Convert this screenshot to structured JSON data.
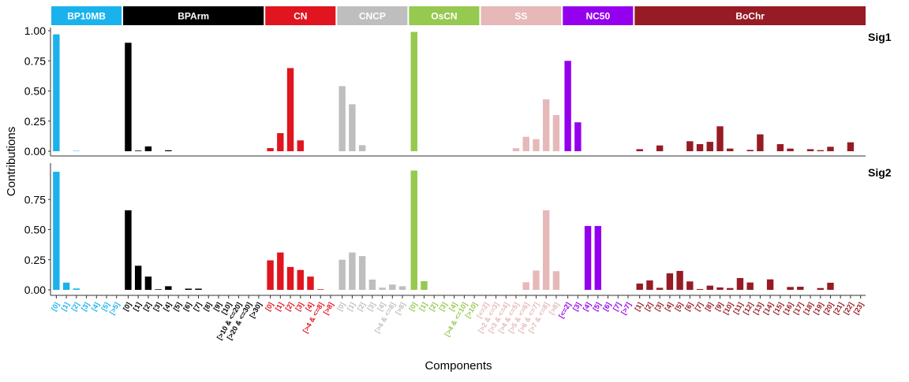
{
  "chart_data": {
    "type": "bar",
    "xlabel": "Components",
    "ylabel": "Contributions",
    "ylim": [
      0,
      1
    ],
    "yticks": {
      "Sig1": [
        "0.00",
        "0.25",
        "0.50",
        "0.75",
        "1.00"
      ],
      "Sig2": [
        "0.00",
        "0.25",
        "0.50",
        "0.75"
      ]
    },
    "facets": [
      {
        "name": "BP10MB",
        "color": "#1AB2EC",
        "labels": [
          "[0]",
          "[1]",
          "[2]",
          "[3]",
          "[4]",
          "[5]",
          "[>5]"
        ]
      },
      {
        "name": "BPArm",
        "color": "#000000",
        "labels": [
          "[0]",
          "[1]",
          "[2]",
          "[3]",
          "[4]",
          "[5]",
          "[6]",
          "[7]",
          "[8]",
          "[9]",
          "[10]",
          "[>10 & <=20]",
          "[>20 & <=30]",
          "[>30]"
        ]
      },
      {
        "name": "CN",
        "color": "#E0151F",
        "labels": [
          "[0]",
          "[1]",
          "[2]",
          "[3]",
          "[4]",
          "[>4 & <=8]",
          "[>8]"
        ]
      },
      {
        "name": "CNCP",
        "color": "#BEBEBE",
        "labels": [
          "[0]",
          "[1]",
          "[2]",
          "[3]",
          "[4]",
          "[>4 & <=8]",
          "[>8]"
        ]
      },
      {
        "name": "OsCN",
        "color": "#95C94F",
        "labels": [
          "[0]",
          "[1]",
          "[2]",
          "[3]",
          "[4]",
          "[>4 & <=10]",
          "[>10]"
        ]
      },
      {
        "name": "SS",
        "color": "#E6B8B8",
        "labels": [
          "[<=2]",
          "[>2 & <=3]",
          "[>3 & <=4]",
          "[>4 & <=5]",
          "[>5 & <=6]",
          "[>6 & <=7]",
          "[>7 & <=8]",
          "[>8]"
        ]
      },
      {
        "name": "NC50",
        "color": "#9400EE",
        "labels": [
          "[<=2]",
          "[3]",
          "[4]",
          "[5]",
          "[6]",
          "[7]",
          "[>7]"
        ]
      },
      {
        "name": "BoChr",
        "color": "#971B24",
        "labels": [
          "[1]",
          "[2]",
          "[3]",
          "[4]",
          "[5]",
          "[6]",
          "[7]",
          "[8]",
          "[9]",
          "[10]",
          "[11]",
          "[12]",
          "[13]",
          "[14]",
          "[15]",
          "[16]",
          "[17]",
          "[18]",
          "[19]",
          "[20]",
          "[21]",
          "[22]",
          "[23]"
        ]
      }
    ],
    "series": [
      {
        "name": "Sig1",
        "values": {
          "BP10MB": [
            0.97,
            0,
            0.003,
            0,
            0,
            0,
            0
          ],
          "BPArm": [
            0.9,
            0.005,
            0.04,
            0,
            0.008,
            0,
            0,
            0,
            0,
            0,
            0,
            0,
            0,
            0
          ],
          "CN": [
            0.026,
            0.15,
            0.69,
            0.09,
            0,
            0,
            0
          ],
          "CNCP": [
            0.54,
            0.39,
            0.05,
            0,
            0,
            0,
            0
          ],
          "OsCN": [
            0.99,
            0,
            0,
            0,
            0,
            0,
            0
          ],
          "SS": [
            0,
            0,
            0,
            0.025,
            0.12,
            0.1,
            0.43,
            0.3
          ],
          "NC50": [
            0.75,
            0.24,
            0,
            0,
            0,
            0,
            0
          ],
          "BoChr": [
            0.017,
            0,
            0.048,
            0,
            0,
            0.083,
            0.059,
            0.078,
            0.207,
            0.022,
            0,
            0.011,
            0.14,
            0,
            0.059,
            0.022,
            0,
            0.017,
            0.009,
            0.037,
            0,
            0.074,
            0
          ]
        }
      },
      {
        "name": "Sig2",
        "values": {
          "BP10MB": [
            0.98,
            0.06,
            0.011,
            0,
            0,
            0,
            0
          ],
          "BPArm": [
            0.66,
            0.2,
            0.11,
            0.005,
            0.03,
            0,
            0.01,
            0.01,
            0,
            0,
            0,
            0,
            0,
            0
          ],
          "CN": [
            0.245,
            0.31,
            0.19,
            0.165,
            0.11,
            0.005,
            0
          ],
          "CNCP": [
            0.25,
            0.31,
            0.28,
            0.085,
            0.018,
            0.044,
            0.03
          ],
          "OsCN": [
            0.99,
            0.072,
            0,
            0,
            0,
            0,
            0
          ],
          "SS": [
            0,
            0,
            0,
            0,
            0.063,
            0.16,
            0.66,
            0.155
          ],
          "NC50": [
            0,
            0,
            0.53,
            0.53,
            0,
            0,
            0
          ],
          "BoChr": [
            0.052,
            0.078,
            0.017,
            0.137,
            0.157,
            0.07,
            0.007,
            0.035,
            0.02,
            0.015,
            0.098,
            0.061,
            0,
            0.087,
            0,
            0.024,
            0.026,
            0,
            0.015,
            0.059,
            0,
            0,
            0
          ]
        }
      }
    ]
  }
}
